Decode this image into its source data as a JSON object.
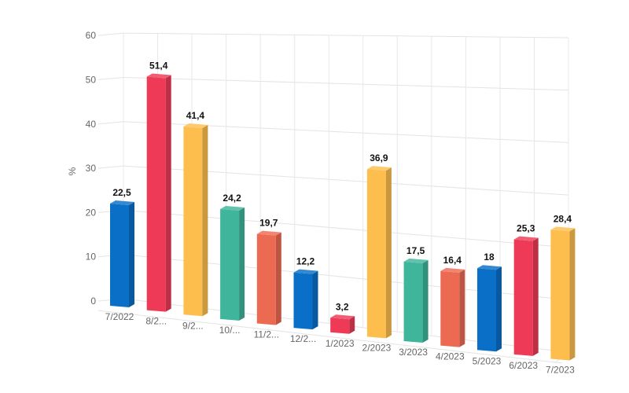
{
  "chart_data": {
    "type": "bar",
    "title": "",
    "xlabel": "",
    "ylabel": "%",
    "ylim": [
      0,
      60
    ],
    "yticks": [
      "0",
      "10",
      "20",
      "30",
      "40",
      "50",
      "60"
    ],
    "grid": true,
    "style": "3d-perspective",
    "categories": [
      "7/2022",
      "8/2...",
      "9/2...",
      "10/...",
      "11/2...",
      "12/2...",
      "1/2023",
      "2/2023",
      "3/2023",
      "4/2023",
      "5/2023",
      "6/2023",
      "7/2023"
    ],
    "values": [
      22.5,
      51.4,
      41.4,
      24.2,
      19.7,
      12.2,
      3.2,
      36.9,
      17.5,
      16.4,
      18,
      25.3,
      28.4
    ],
    "value_labels": [
      "22,5",
      "51,4",
      "41,4",
      "24,2",
      "19,7",
      "12,2",
      "3,2",
      "36,9",
      "17,5",
      "16,4",
      "18",
      "25,3",
      "28,4"
    ],
    "colors": [
      "#0a6fc7",
      "#ee3a56",
      "#fdbe4d",
      "#3fb59b",
      "#ed6a52",
      "#0a6fc7",
      "#ee3a56",
      "#fdbe4d",
      "#3fb59b",
      "#ed6a52",
      "#0a6fc7",
      "#ee3a56",
      "#fdbe4d"
    ]
  }
}
